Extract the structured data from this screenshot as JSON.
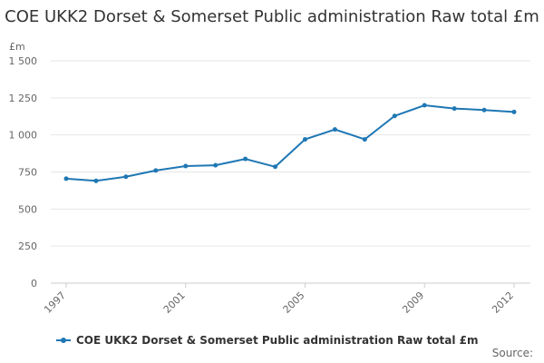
{
  "chart_data": {
    "type": "line",
    "title": "COE UKK2 Dorset & Somerset Public administration Raw total £m",
    "ylabel": "£m",
    "xlabel": "",
    "x": [
      "1997",
      "1998",
      "1999",
      "2000",
      "2001",
      "2002",
      "2003",
      "2004",
      "2005",
      "2006",
      "2007",
      "2008",
      "2009",
      "2010",
      "2011",
      "2012"
    ],
    "x_tick_labels": [
      "1997",
      "2001",
      "2005",
      "2009",
      "2012"
    ],
    "series": [
      {
        "name": "COE UKK2 Dorset & Somerset Public administration Raw total £m",
        "color": "#1f77b4",
        "values": [
          705,
          690,
          718,
          760,
          790,
          795,
          838,
          785,
          970,
          1037,
          970,
          1128,
          1200,
          1178,
          1168,
          1155
        ]
      }
    ],
    "ylim": [
      0,
      1500
    ],
    "y_ticks": [
      0,
      250,
      500,
      750,
      1000,
      1250,
      1500
    ],
    "y_tick_labels": [
      "0",
      "250",
      "500",
      "750",
      "1 000",
      "1 250",
      "1 500"
    ],
    "grid": true,
    "legend": "bottom"
  },
  "source_label": "Source:"
}
